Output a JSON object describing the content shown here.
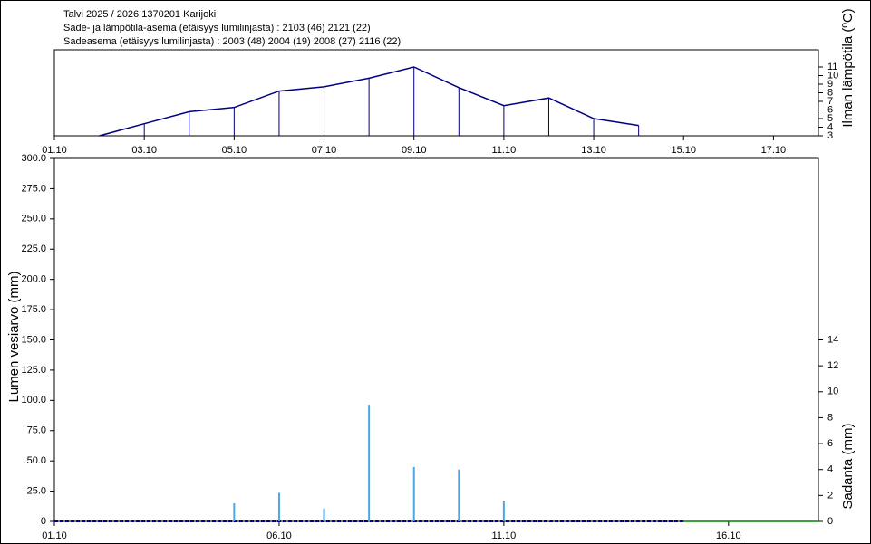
{
  "chart_data": [
    {
      "type": "line",
      "title": "Talvi 2025 / 2026 1370201 Karijoki",
      "subtitles": [
        "Sade- ja lämpötila-asema (etäisyys lumilinjasta) :  2103 (46) 2121 (22)",
        "Sadeasema (etäisyys lumilinjasta) :  2003 (48) 2004 (19) 2008 (27) 2116 (22)"
      ],
      "y_label": "Ilman lämpötila (ºC)",
      "xlim": [
        1,
        18
      ],
      "xticks": [
        {
          "value": 1,
          "label": "01.10"
        },
        {
          "value": 3,
          "label": "03.10"
        },
        {
          "value": 5,
          "label": "05.10"
        },
        {
          "value": 7,
          "label": "07.10"
        },
        {
          "value": 9,
          "label": "09.10"
        },
        {
          "value": 11,
          "label": "11.10"
        },
        {
          "value": 13,
          "label": "13.10"
        },
        {
          "value": 15,
          "label": "15.10"
        },
        {
          "value": 17,
          "label": "17.10"
        }
      ],
      "ylim": [
        3,
        13
      ],
      "yticks": [
        3,
        4,
        5,
        6,
        7,
        8,
        9,
        10,
        11
      ],
      "x": [
        2,
        3,
        4,
        5,
        6,
        7,
        8,
        9,
        10,
        11,
        12,
        13,
        14
      ],
      "series": [
        {
          "color": "#000080",
          "values": [
            3,
            4.4,
            5.8,
            6.3,
            8.2,
            8.7,
            9.7,
            11,
            8.6,
            6.5,
            7.4,
            5,
            4.2
          ]
        }
      ]
    },
    {
      "type": "combo",
      "y_label": "Lumen vesiarvo (mm)",
      "y2_label": "Sadanta (mm)",
      "xlim": [
        1,
        18
      ],
      "xticks": [
        {
          "value": 1,
          "label": "01.10"
        },
        {
          "value": 6,
          "label": "06.10"
        },
        {
          "value": 11,
          "label": "11.10"
        },
        {
          "value": 16,
          "label": "16.10"
        }
      ],
      "ylim": [
        0,
        300
      ],
      "yticks": [
        0,
        {
          "value": 25,
          "label": "25.0"
        },
        {
          "value": 50,
          "label": "50.0"
        },
        {
          "value": 75,
          "label": "75.0"
        },
        {
          "value": 100,
          "label": "100.0"
        },
        {
          "value": 125,
          "label": "125.0"
        },
        {
          "value": 150,
          "label": "150.0"
        },
        {
          "value": 175,
          "label": "175.0"
        },
        {
          "value": 200,
          "label": "200.0"
        },
        {
          "value": 225,
          "label": "225.0"
        },
        {
          "value": 250,
          "label": "250.0"
        },
        {
          "value": 275,
          "label": "275.0"
        },
        {
          "value": 300,
          "label": "300.0"
        }
      ],
      "y2lim": [
        0,
        28
      ],
      "y2ticks": [
        0,
        2,
        4,
        6,
        8,
        10,
        12,
        14
      ],
      "series": [
        {
          "kind": "line",
          "dashed": true,
          "color": "#000080",
          "x": [
            1,
            2,
            3,
            4,
            5,
            6,
            7,
            8,
            9,
            10,
            11,
            12,
            13,
            14,
            15
          ],
          "values": [
            0,
            0,
            0,
            0,
            0,
            0,
            0,
            0,
            0,
            0,
            0,
            0,
            0,
            0,
            0
          ]
        },
        {
          "kind": "line",
          "dashed": false,
          "color": "#008000",
          "x": [
            15,
            16,
            17,
            18
          ],
          "values": [
            0,
            0,
            0,
            0
          ]
        },
        {
          "kind": "bar",
          "axis": "y2",
          "color": "#4da6e6",
          "x": [
            5,
            6,
            7,
            8,
            9,
            10,
            11,
            12
          ],
          "values": [
            1.4,
            2.2,
            1.0,
            9.0,
            4.2,
            4.0,
            1.6,
            0.1
          ]
        }
      ]
    }
  ]
}
